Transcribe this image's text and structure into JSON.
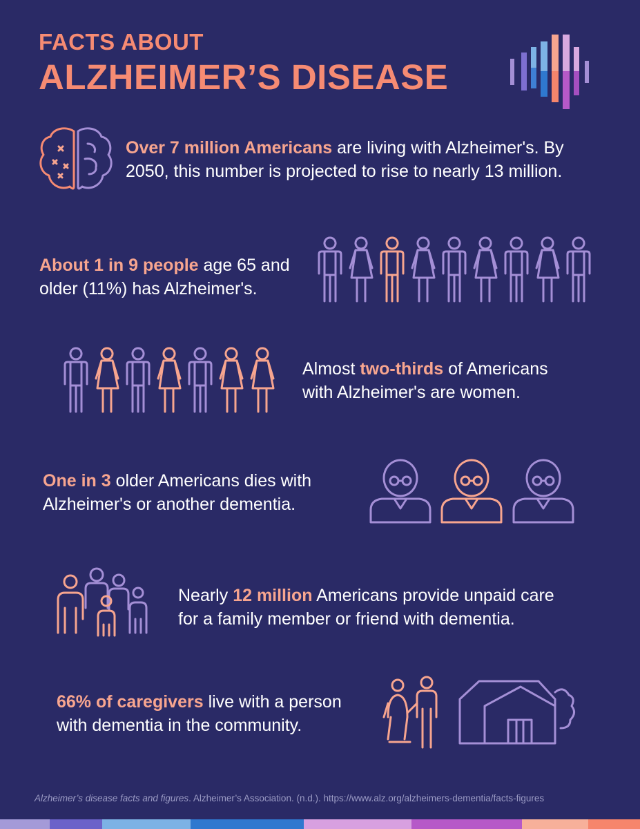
{
  "header": {
    "line1": "FACTS ABOUT",
    "line2": "ALZHEIMER’S DISEASE"
  },
  "facts": [
    {
      "highlight": "Over 7 million Americans",
      "rest_line1": " are living with Alzheimer's. By",
      "line2": "2050, this number is projected to rise to nearly 13 million.",
      "icon": "brain-icon"
    },
    {
      "highlight": "About 1 in 9 people",
      "rest_line1": " age 65 and",
      "line2": "older (11%) has Alzheimer's.",
      "icon": "people-row-icon",
      "highlighted_count": 1,
      "total_count": 9
    },
    {
      "prefix": "Almost ",
      "highlight": "two-thirds",
      "rest_line1": " of Americans",
      "line2": "with Alzheimer's are women.",
      "icon": "people-row-icon",
      "highlighted_count": 4,
      "total_count": 7
    },
    {
      "highlight": "One in 3",
      "rest_line1": " older Americans dies with",
      "line2": "Alzheimer's or another dementia.",
      "icon": "elderly-person-icon",
      "highlighted_count": 1,
      "total_count": 3
    },
    {
      "prefix": "Nearly ",
      "highlight": "12 million",
      "rest_line1": " Americans provide unpaid care",
      "line2": "for a family member or friend with dementia.",
      "icon": "family-group-icon"
    },
    {
      "highlight": "66% of caregivers",
      "rest_line1": " live with a person",
      "line2": "with dementia in the community.",
      "icon": "caregiver-house-icon"
    }
  ],
  "source": {
    "title": "Alzheimer’s disease facts and figures",
    "rest": ". Alzheimer’s Association. (n.d.). https://www.alz.org/alzheimers-dementia/facts-figures"
  },
  "colors": {
    "background": "#2a2a66",
    "coral": "#f68b73",
    "peach": "#f7a58f",
    "lavender": "#a48fd6"
  }
}
